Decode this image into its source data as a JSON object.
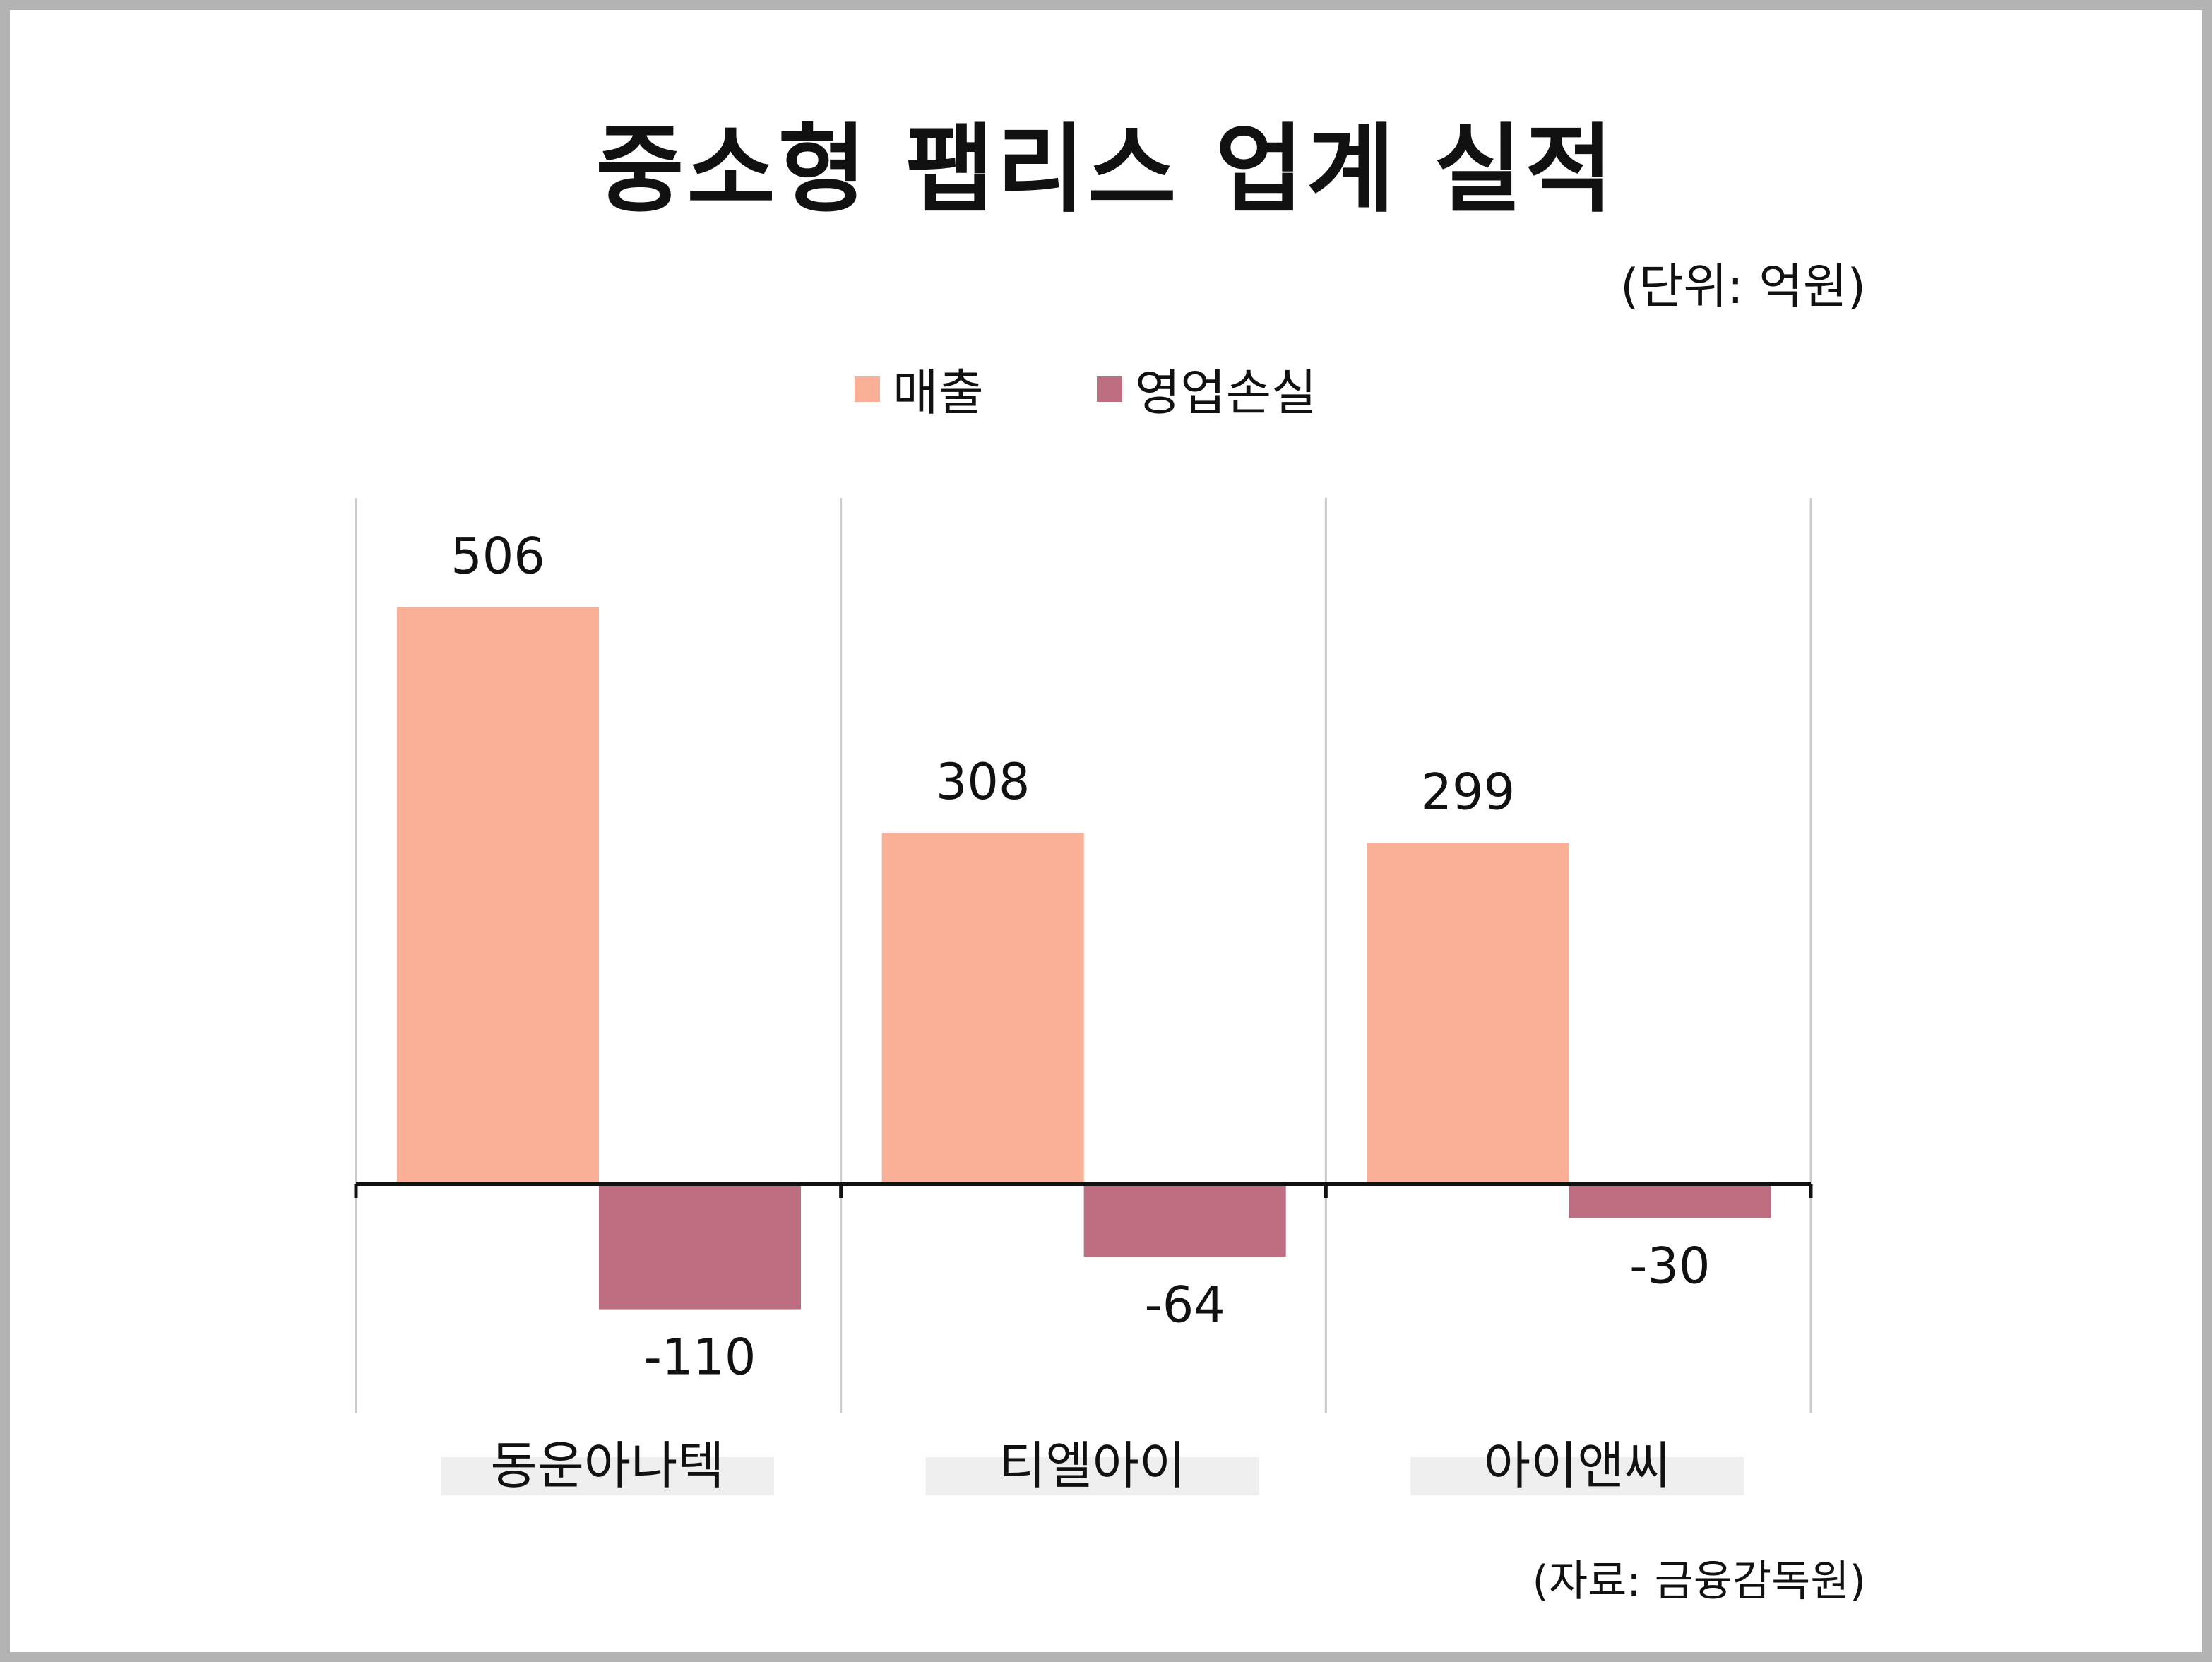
{
  "title": "중소형 팹리스 업계 실적",
  "unit_note": "(단위: 억원)",
  "source_note": "(자료: 금융감독원)",
  "colors": {
    "sales": "#f9b097",
    "operating_loss": "#bd6e81",
    "axis": "#111111",
    "grid": "#cccccc",
    "category_bg": "#efefef"
  },
  "chart_data": {
    "type": "bar",
    "title": "중소형 팹리스 업계 실적",
    "categories": [
      "동운아나텍",
      "티엘아이",
      "아이앤씨"
    ],
    "series": [
      {
        "name": "매출",
        "values": [
          506,
          308,
          299
        ],
        "labels": [
          "506",
          "308",
          "299"
        ]
      },
      {
        "name": "영업손실",
        "values": [
          -110,
          -64,
          -30
        ],
        "labels": [
          "-110",
          "-64",
          "-30"
        ]
      }
    ],
    "xlabel": "",
    "ylabel": "",
    "ylim": [
      -200,
      600
    ],
    "grid": "vertical separators",
    "legend": "top"
  }
}
